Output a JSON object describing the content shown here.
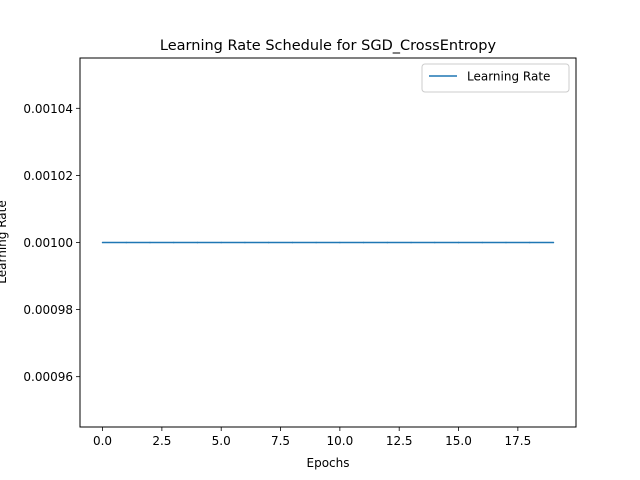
{
  "chart_data": {
    "type": "line",
    "title": "Learning Rate Schedule for SGD_CrossEntropy",
    "xlabel": "Epochs",
    "ylabel": "Learning Rate",
    "xlim": [
      -0.95,
      19.95
    ],
    "ylim": [
      0.000945,
      0.001055
    ],
    "xticks": [
      0,
      2.5,
      5,
      7.5,
      10,
      12.5,
      15,
      17.5
    ],
    "xtick_labels": [
      "0.0",
      "2.5",
      "5.0",
      "7.5",
      "10.0",
      "12.5",
      "15.0",
      "17.5"
    ],
    "yticks": [
      0.00096,
      0.00098,
      0.001,
      0.00102,
      0.00104
    ],
    "ytick_labels": [
      "0.00096",
      "0.00098",
      "0.00100",
      "0.00102",
      "0.00104"
    ],
    "grid": false,
    "legend": "top-right",
    "series": [
      {
        "name": "Learning Rate",
        "color": "#1f77b4",
        "x": [
          0,
          1,
          2,
          3,
          4,
          5,
          6,
          7,
          8,
          9,
          10,
          11,
          12,
          13,
          14,
          15,
          16,
          17,
          18,
          19
        ],
        "values": [
          0.001,
          0.001,
          0.001,
          0.001,
          0.001,
          0.001,
          0.001,
          0.001,
          0.001,
          0.001,
          0.001,
          0.001,
          0.001,
          0.001,
          0.001,
          0.001,
          0.001,
          0.001,
          0.001,
          0.001
        ]
      }
    ]
  }
}
